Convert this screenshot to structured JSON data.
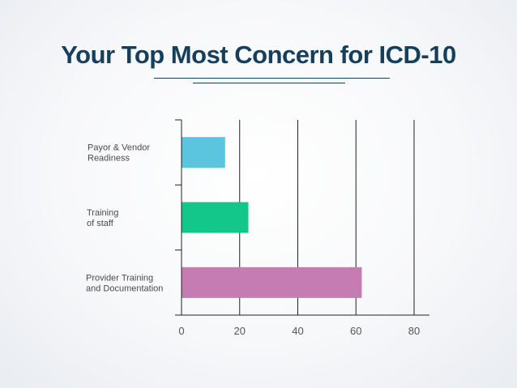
{
  "title": "Your Top Most Concern for ICD-10",
  "colors": {
    "title": "#163f5c",
    "rule": "#163f5c",
    "axis": "#222222",
    "grid": "#222222"
  },
  "chart_data": {
    "type": "bar",
    "orientation": "horizontal",
    "categories": [
      [
        "Payor & Vendor",
        "Readiness"
      ],
      [
        "Training",
        "of staff"
      ],
      [
        "Provider Training",
        "and Documentation"
      ]
    ],
    "values": [
      15,
      23,
      62
    ],
    "bar_colors": [
      "#5bc4de",
      "#13c68a",
      "#c47cb3"
    ],
    "xlim": [
      0,
      80
    ],
    "xticks": [
      0,
      20,
      40,
      60,
      80
    ],
    "title": "",
    "xlabel": "",
    "ylabel": "",
    "grid": true,
    "legend": "none"
  }
}
